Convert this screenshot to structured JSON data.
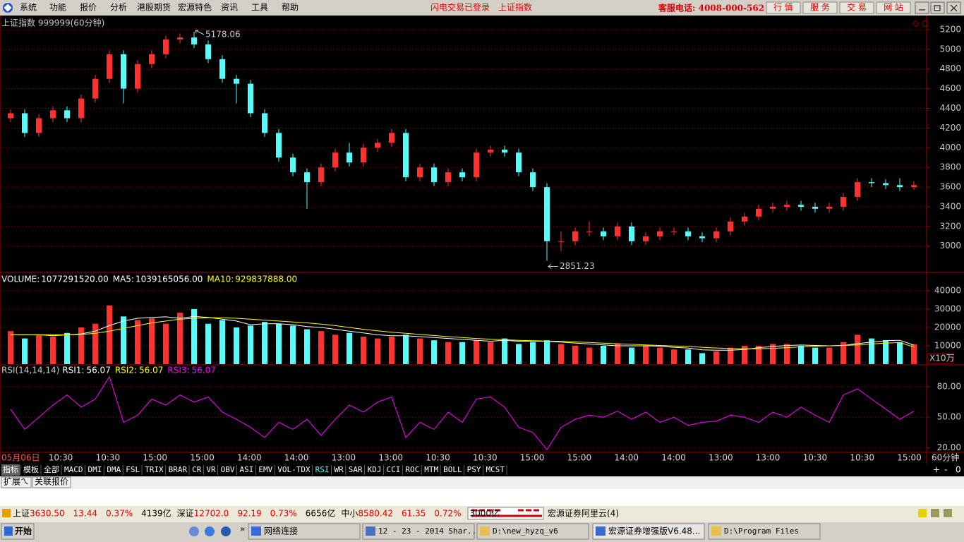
{
  "menu": {
    "items": [
      "系统",
      "功能",
      "报价",
      "分析",
      "港股期货",
      "宏源特色",
      "资讯",
      "工具",
      "帮助"
    ],
    "notice": "闪电交易已登录",
    "current": "上证指数",
    "hotline": "客服电话: 4008-000-562",
    "buttons": [
      "行 情",
      "服 务",
      "交 易",
      "网 站"
    ]
  },
  "chart_data": [
    {
      "type": "candlestick",
      "title": "上证指数 999999(60分钟)",
      "up_color": "#ff3232",
      "down_color": "#54fcfc",
      "open": [
        4300,
        4350,
        4150,
        4300,
        4380,
        4300,
        4500,
        4700,
        4950,
        4600,
        4850,
        4950,
        5100,
        5120,
        5050,
        4900,
        4700,
        4650,
        4350,
        4150,
        3900,
        3750,
        3650,
        3800,
        3950,
        3850,
        4000,
        4050,
        4150,
        3700,
        3800,
        3650,
        3750,
        3700,
        3950,
        3980,
        3950,
        3750,
        3600,
        3050,
        3050,
        3150,
        3150,
        3100,
        3200,
        3050,
        3100,
        3150,
        3150,
        3100,
        3080,
        3150,
        3250,
        3300,
        3380,
        3400,
        3420,
        3400,
        3380,
        3400,
        3500,
        3650,
        3640,
        3620,
        3600
      ],
      "high": [
        4390,
        4390,
        4340,
        4420,
        4420,
        4540,
        4740,
        4990,
        4990,
        4890,
        4990,
        5140,
        5160,
        5178.06,
        5090,
        4940,
        4740,
        4690,
        4390,
        4190,
        3940,
        3790,
        3840,
        3990,
        4050,
        4040,
        4090,
        4190,
        4190,
        3840,
        3840,
        3790,
        3790,
        3990,
        4020,
        4020,
        3990,
        3790,
        3640,
        3150,
        3190,
        3250,
        3190,
        3240,
        3240,
        3140,
        3190,
        3190,
        3190,
        3140,
        3190,
        3290,
        3340,
        3420,
        3440,
        3460,
        3460,
        3440,
        3440,
        3540,
        3690,
        3690,
        3680,
        3690,
        3660
      ],
      "low": [
        4260,
        4110,
        4110,
        4260,
        4260,
        4260,
        4460,
        4660,
        4450,
        4560,
        4810,
        4910,
        5060,
        5010,
        4860,
        4660,
        4450,
        4310,
        4110,
        3860,
        3710,
        3380,
        3610,
        3760,
        3810,
        3810,
        3960,
        4010,
        3660,
        3660,
        3610,
        3610,
        3660,
        3660,
        3910,
        3910,
        3710,
        3560,
        2851.23,
        2950,
        3010,
        3100,
        3060,
        3060,
        3010,
        3010,
        3060,
        3110,
        3060,
        3040,
        3040,
        3110,
        3210,
        3260,
        3340,
        3360,
        3360,
        3340,
        3340,
        3360,
        3460,
        3600,
        3580,
        3560,
        3570
      ],
      "close": [
        4350,
        4150,
        4300,
        4380,
        4300,
        4500,
        4700,
        4950,
        4600,
        4850,
        4950,
        5100,
        5120,
        5050,
        4900,
        4700,
        4650,
        4350,
        4150,
        3900,
        3750,
        3650,
        3800,
        3950,
        3850,
        4000,
        4050,
        4150,
        3700,
        3800,
        3650,
        3750,
        3700,
        3950,
        3980,
        3950,
        3750,
        3600,
        3050,
        3050,
        3150,
        3150,
        3100,
        3200,
        3050,
        3100,
        3150,
        3150,
        3100,
        3080,
        3150,
        3250,
        3300,
        3380,
        3400,
        3420,
        3400,
        3380,
        3400,
        3500,
        3650,
        3640,
        3620,
        3600,
        3620
      ],
      "ylim": [
        2740,
        5300
      ],
      "yticks": [
        3000,
        3200,
        3400,
        3600,
        3800,
        4000,
        4200,
        4400,
        4600,
        4800,
        5000,
        5200
      ],
      "grid": true
    },
    {
      "type": "bar",
      "unit_label": "X10万",
      "series": [
        {
          "name": "VOLUME:",
          "latest_label": "1077291520.00",
          "values": [
            18000,
            14000,
            16000,
            15000,
            17000,
            20000,
            22000,
            32000,
            26000,
            24000,
            25000,
            22000,
            28000,
            30000,
            22000,
            24000,
            20000,
            21000,
            23000,
            22000,
            21000,
            19000,
            18000,
            16000,
            17000,
            15000,
            14000,
            15000,
            16000,
            14000,
            13000,
            12000,
            12000,
            13000,
            12000,
            14000,
            11000,
            12000,
            13000,
            11000,
            10000,
            9000,
            10000,
            11000,
            9000,
            10000,
            9000,
            8000,
            8000,
            6000,
            7000,
            9000,
            10000,
            10000,
            11000,
            11000,
            10000,
            9000,
            9000,
            12000,
            16000,
            14000,
            13000,
            12000,
            10772.9152
          ]
        },
        {
          "name": "MA5:",
          "color": "#ffffff",
          "latest_label": "1039165056.00",
          "values": [
            16000,
            16000,
            16000,
            15500,
            16000,
            16500,
            18000,
            21000,
            23500,
            25000,
            25500,
            25800,
            25000,
            26000,
            25500,
            24500,
            23500,
            21500,
            22000,
            22000,
            21500,
            20500,
            20000,
            19000,
            18000,
            17000,
            16000,
            15500,
            15500,
            15000,
            14500,
            14000,
            13500,
            13000,
            12500,
            13000,
            12500,
            12500,
            12500,
            12000,
            11500,
            11000,
            10500,
            10000,
            10000,
            10000,
            9800,
            9200,
            8800,
            7800,
            7600,
            7600,
            8000,
            9000,
            9600,
            10200,
            10400,
            10200,
            10000,
            10200,
            11200,
            12000,
            12800,
            13000,
            10391.65056
          ]
        },
        {
          "name": "MA10:",
          "color": "#ffff00",
          "latest_label": "929837888.00",
          "values": [
            16000,
            16000,
            16000,
            16000,
            16000,
            16200,
            16800,
            18000,
            19500,
            21000,
            22500,
            23500,
            24500,
            25000,
            25300,
            25300,
            25000,
            24500,
            24000,
            23500,
            23000,
            22500,
            21800,
            21000,
            20000,
            19000,
            18200,
            17400,
            16800,
            16200,
            15600,
            15000,
            14500,
            14000,
            13600,
            13300,
            13000,
            12800,
            12600,
            12400,
            12100,
            11800,
            11400,
            11100,
            10800,
            10500,
            10200,
            9900,
            9600,
            9200,
            8800,
            8500,
            8400,
            8400,
            8600,
            9000,
            9400,
            9800,
            10000,
            10200,
            10500,
            11000,
            11400,
            11800,
            9298.37888
          ]
        }
      ],
      "ylim": [
        0,
        49200
      ],
      "yticks": [
        10000,
        20000,
        30000,
        40000
      ],
      "grid": true
    },
    {
      "type": "line",
      "title": "RSI(14,14,14)",
      "color": "#ff00ff",
      "legend": [
        {
          "name": "RSI1:",
          "label": "56.07",
          "color": "#ffffff"
        },
        {
          "name": "RSI2:",
          "label": "56.07",
          "color": "#ffff00"
        },
        {
          "name": "RSI3:",
          "label": "56.07",
          "color": "#ff00ff"
        }
      ],
      "values": [
        58,
        38,
        50,
        62,
        72,
        60,
        68,
        90,
        45,
        52,
        68,
        62,
        72,
        65,
        70,
        55,
        48,
        40,
        30,
        45,
        38,
        48,
        32,
        48,
        62,
        55,
        65,
        70,
        30,
        45,
        38,
        55,
        45,
        68,
        70,
        60,
        40,
        35,
        18,
        40,
        48,
        52,
        50,
        56,
        48,
        55,
        45,
        50,
        42,
        45,
        46,
        52,
        50,
        45,
        55,
        50,
        60,
        52,
        45,
        72,
        78,
        68,
        58,
        48,
        56.07
      ],
      "ylim": [
        16,
        101
      ],
      "yticks": [
        {
          "value": 20,
          "label": "20.00"
        },
        {
          "value": 50,
          "label": "50.00"
        },
        {
          "value": 80,
          "label": "80.00"
        }
      ],
      "grid": true
    }
  ],
  "time_axis": {
    "labels": [
      "05月06日",
      "10:30",
      "10:30",
      "15:00",
      "15:00",
      "14:00",
      "14:00",
      "13:00",
      "13:00",
      "10:30",
      "10:30",
      "15:00",
      "15:00",
      "14:00",
      "14:00",
      "13:00",
      "13:00",
      "10:30",
      "10:30",
      "15:00"
    ],
    "period": "60分钟"
  },
  "indicator_tabs": [
    "指标",
    "模板",
    "全部",
    "MACD",
    "DMI",
    "DMA",
    "FSL",
    "TRIX",
    "BRAR",
    "CR",
    "VR",
    "OBV",
    "ASI",
    "EMV",
    "VOL-TDX",
    "RSI",
    "WR",
    "SAR",
    "KDJ",
    "CCI",
    "ROC",
    "MTM",
    "BOLL",
    "PSY",
    "MCST"
  ],
  "zoom_buttons": [
    "+",
    "-",
    "0"
  ],
  "sub_tabs": [
    "扩展ㄟ",
    "关联报价"
  ],
  "status": {
    "markets": [
      {
        "name": "上证",
        "index": "3630.50",
        "change": "13.44",
        "percent": "0.37%",
        "turnover": "4139亿"
      },
      {
        "name": "深证",
        "index": "12702.0",
        "change": "92.19",
        "percent": "0.73%",
        "turnover": "6656亿"
      },
      {
        "name": "中小",
        "index": "8580.42",
        "change": "61.35",
        "percent": "0.72%",
        "turnover": "3000亿"
      }
    ],
    "broker": "宏源证券阿里云(4)"
  },
  "taskbar": {
    "start": "开始",
    "items": [
      "网络连接",
      "12 - 23 - 2014 Shar...",
      "D:\\new_hyzq_v6",
      "宏源证券增强版V6.48...",
      "D:\\Program Files"
    ]
  }
}
